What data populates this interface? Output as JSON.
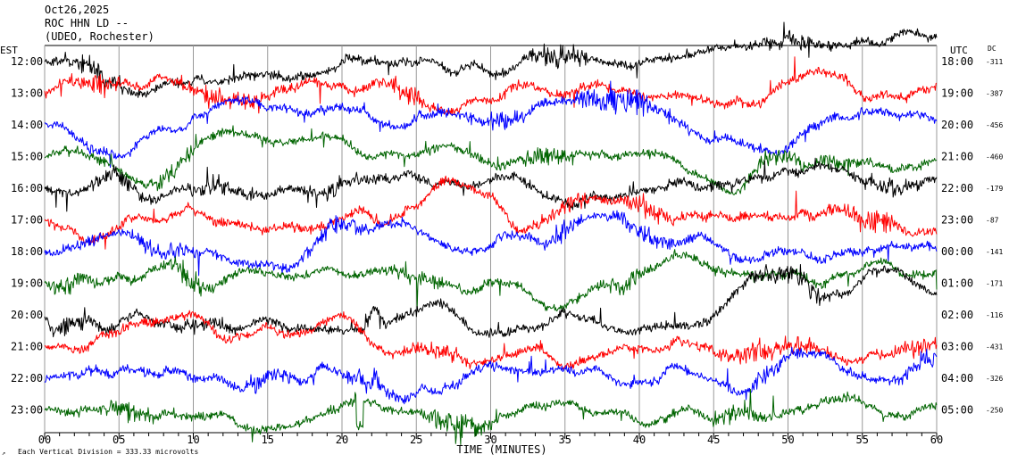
{
  "header": {
    "line1": "Oct26,2025",
    "line2": "ROC HHN LD --",
    "line3": "(UDEO, Rochester)"
  },
  "chart_data": {
    "type": "line",
    "left_label": "EST",
    "right_label": "UTC",
    "dc_label": "DC",
    "xlabel": "TIME (MINUTES)",
    "xlim": [
      0,
      60
    ],
    "x_ticks": [
      "00",
      "05",
      "10",
      "15",
      "20",
      "25",
      "30",
      "35",
      "40",
      "45",
      "50",
      "55",
      "60"
    ],
    "scale_note": "Each Vertical Division =  333.33 microvolts",
    "colors_cycle": [
      "#000000",
      "#ff0000",
      "#0000ff",
      "#006400"
    ],
    "rows": [
      {
        "est": "12:00",
        "utc": "18:00",
        "dc": "-311",
        "color": "#000000"
      },
      {
        "est": "13:00",
        "utc": "19:00",
        "dc": "-387",
        "color": "#ff0000"
      },
      {
        "est": "14:00",
        "utc": "20:00",
        "dc": "-456",
        "color": "#0000ff"
      },
      {
        "est": "15:00",
        "utc": "21:00",
        "dc": "-460",
        "color": "#006400"
      },
      {
        "est": "16:00",
        "utc": "22:00",
        "dc": "-179",
        "color": "#000000"
      },
      {
        "est": "17:00",
        "utc": "23:00",
        "dc": "-87",
        "color": "#ff0000"
      },
      {
        "est": "18:00",
        "utc": "00:00",
        "dc": "-141",
        "color": "#0000ff"
      },
      {
        "est": "19:00",
        "utc": "01:00",
        "dc": "-171",
        "color": "#006400"
      },
      {
        "est": "20:00",
        "utc": "02:00",
        "dc": "-116",
        "color": "#000000"
      },
      {
        "est": "21:00",
        "utc": "03:00",
        "dc": "-431",
        "color": "#ff0000"
      },
      {
        "est": "22:00",
        "utc": "04:00",
        "dc": "-326",
        "color": "#0000ff"
      },
      {
        "est": "23:00",
        "utc": "05:00",
        "dc": "-250",
        "color": "#006400"
      }
    ]
  }
}
